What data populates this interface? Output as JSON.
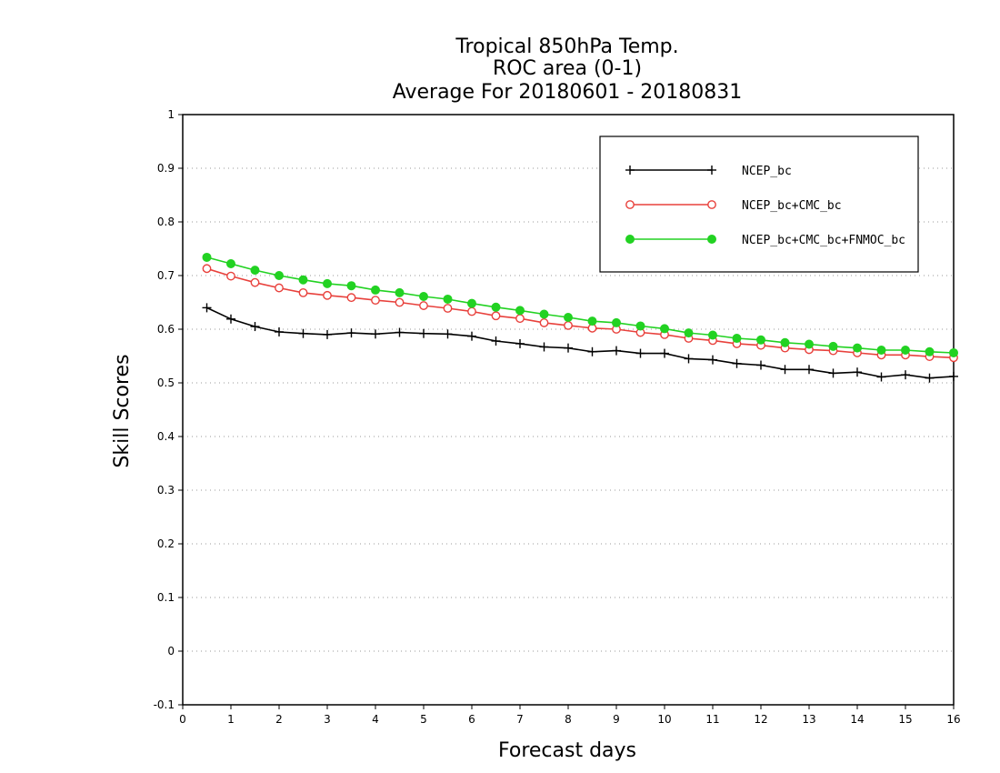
{
  "chart_data": {
    "type": "line",
    "title": [
      "Tropical 850hPa Temp.",
      "ROC area (0-1)",
      "Average For 20180601 - 20180831"
    ],
    "xlabel": "Forecast days",
    "ylabel": "Skill Scores",
    "xlim": [
      0,
      16
    ],
    "ylim": [
      -0.1,
      1
    ],
    "xticks": [
      "0",
      "1",
      "2",
      "3",
      "4",
      "5",
      "6",
      "7",
      "8",
      "9",
      "10",
      "11",
      "12",
      "13",
      "14",
      "15",
      "16"
    ],
    "yticks": [
      "-0.1",
      "0",
      "0.1",
      "0.2",
      "0.3",
      "0.4",
      "0.5",
      "0.6",
      "0.7",
      "0.8",
      "0.9",
      "1"
    ],
    "grid": true,
    "legend_position": "top-right",
    "x": [
      0.5,
      1,
      1.5,
      2,
      2.5,
      3,
      3.5,
      4,
      4.5,
      5,
      5.5,
      6,
      6.5,
      7,
      7.5,
      8,
      8.5,
      9,
      9.5,
      10,
      10.5,
      11,
      11.5,
      12,
      12.5,
      13,
      13.5,
      14,
      14.5,
      15,
      15.5,
      16
    ],
    "series": [
      {
        "name": "NCEP_bc",
        "color": "#000000",
        "marker": "plus",
        "values": [
          0.64,
          0.619,
          0.605,
          0.595,
          0.592,
          0.59,
          0.593,
          0.591,
          0.594,
          0.592,
          0.591,
          0.587,
          0.578,
          0.573,
          0.567,
          0.565,
          0.558,
          0.56,
          0.555,
          0.555,
          0.545,
          0.543,
          0.536,
          0.533,
          0.525,
          0.525,
          0.518,
          0.52,
          0.511,
          0.515,
          0.509,
          0.512
        ]
      },
      {
        "name": "NCEP_bc+CMC_bc",
        "color": "#e8413c",
        "marker": "open-circle",
        "values": [
          0.713,
          0.699,
          0.687,
          0.677,
          0.668,
          0.663,
          0.659,
          0.654,
          0.65,
          0.644,
          0.639,
          0.633,
          0.625,
          0.62,
          0.612,
          0.607,
          0.602,
          0.6,
          0.594,
          0.59,
          0.583,
          0.579,
          0.573,
          0.57,
          0.565,
          0.562,
          0.56,
          0.556,
          0.552,
          0.552,
          0.549,
          0.547
        ]
      },
      {
        "name": "NCEP_bc+CMC_bc+FNMOC_bc",
        "color": "#22d222",
        "marker": "filled-circle",
        "values": [
          0.734,
          0.722,
          0.71,
          0.7,
          0.692,
          0.685,
          0.681,
          0.673,
          0.668,
          0.661,
          0.656,
          0.648,
          0.641,
          0.635,
          0.628,
          0.622,
          0.615,
          0.612,
          0.606,
          0.601,
          0.593,
          0.589,
          0.583,
          0.58,
          0.575,
          0.572,
          0.568,
          0.565,
          0.561,
          0.561,
          0.558,
          0.556
        ]
      }
    ]
  }
}
